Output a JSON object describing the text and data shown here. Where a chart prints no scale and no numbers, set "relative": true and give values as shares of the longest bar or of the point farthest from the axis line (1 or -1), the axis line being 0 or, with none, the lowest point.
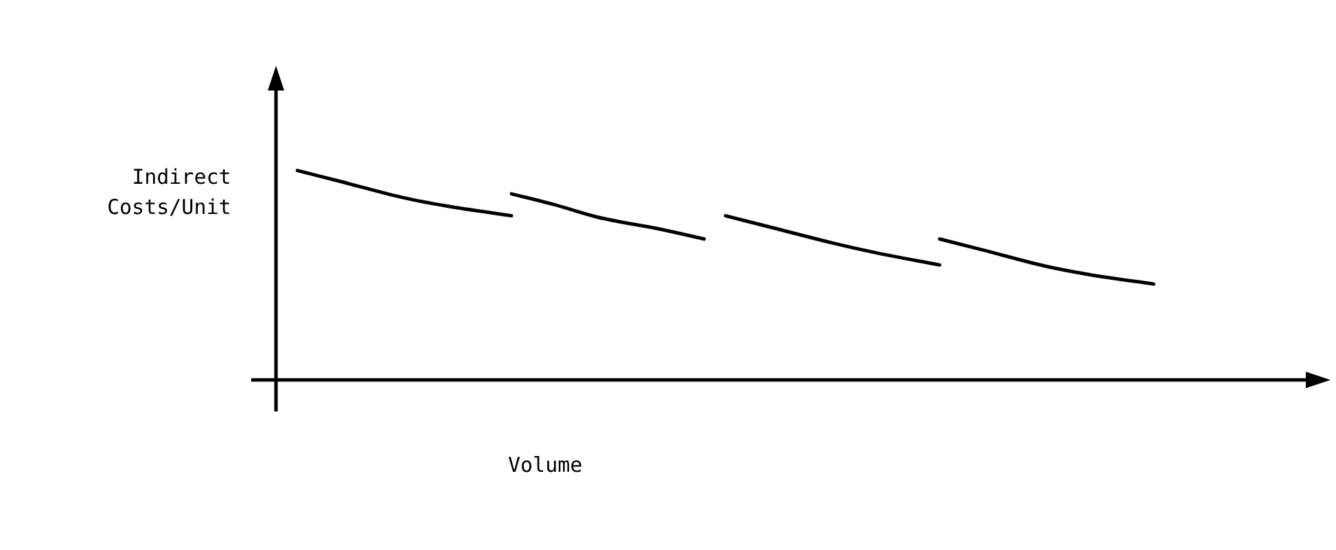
{
  "chart_data": {
    "type": "line",
    "relative": true,
    "xlabel": "Volume",
    "ylabel": "Indirect\nCosts/Unit",
    "categories": [
      null,
      null,
      null,
      null,
      null,
      null,
      null,
      null,
      null,
      null,
      null,
      null,
      null,
      null,
      null,
      null,
      null,
      null,
      null,
      null,
      null,
      null,
      null,
      null,
      null,
      null,
      null,
      null,
      null,
      null,
      null,
      null,
      null,
      null,
      null,
      null,
      null,
      null,
      null,
      null,
      null,
      null,
      null,
      null,
      null,
      null,
      null,
      null,
      null,
      null
    ],
    "grid": false,
    "legend": false,
    "marker": "none",
    "line_style": "solid",
    "series": [
      {
        "color": "#000000",
        "values": [
          null,
          1.0,
          null,
          0.948,
          null,
          null,
          0.869,
          null,
          0.83,
          null,
          null,
          0.784,
          null,
          null,
          null,
          null,
          null,
          null,
          null,
          null,
          null,
          null,
          null,
          null,
          null,
          null,
          null,
          null,
          null,
          null,
          null,
          null,
          null,
          null,
          null,
          null,
          null,
          null,
          null,
          null,
          null,
          null,
          null,
          null,
          null,
          null,
          null,
          null,
          null,
          null
        ]
      },
      {
        "color": "#000000",
        "values": [
          null,
          null,
          null,
          null,
          null,
          null,
          null,
          null,
          null,
          null,
          null,
          0.889,
          null,
          0.837,
          null,
          0.778,
          null,
          null,
          0.719,
          null,
          0.673,
          null,
          null,
          null,
          null,
          null,
          null,
          null,
          null,
          null,
          null,
          null,
          null,
          null,
          null,
          null,
          null,
          null,
          null,
          null,
          null,
          null,
          null,
          null,
          null,
          null,
          null,
          null,
          null,
          null
        ]
      },
      {
        "color": "#000000",
        "values": [
          null,
          null,
          null,
          null,
          null,
          null,
          null,
          null,
          null,
          null,
          null,
          null,
          null,
          null,
          null,
          null,
          null,
          null,
          null,
          null,
          null,
          0.784,
          null,
          0.732,
          null,
          null,
          0.654,
          null,
          0.608,
          null,
          null,
          0.549,
          null,
          null,
          null,
          null,
          null,
          null,
          null,
          null,
          null,
          null,
          null,
          null,
          null,
          null,
          null,
          null,
          null,
          null
        ]
      },
      {
        "color": "#000000",
        "values": [
          null,
          null,
          null,
          null,
          null,
          null,
          null,
          null,
          null,
          null,
          null,
          null,
          null,
          null,
          null,
          null,
          null,
          null,
          null,
          null,
          null,
          null,
          null,
          null,
          null,
          null,
          null,
          null,
          null,
          null,
          null,
          0.673,
          null,
          0.621,
          null,
          null,
          0.542,
          null,
          0.503,
          null,
          null,
          0.458,
          null,
          null,
          null,
          null,
          null,
          null,
          null,
          null
        ]
      }
    ]
  }
}
